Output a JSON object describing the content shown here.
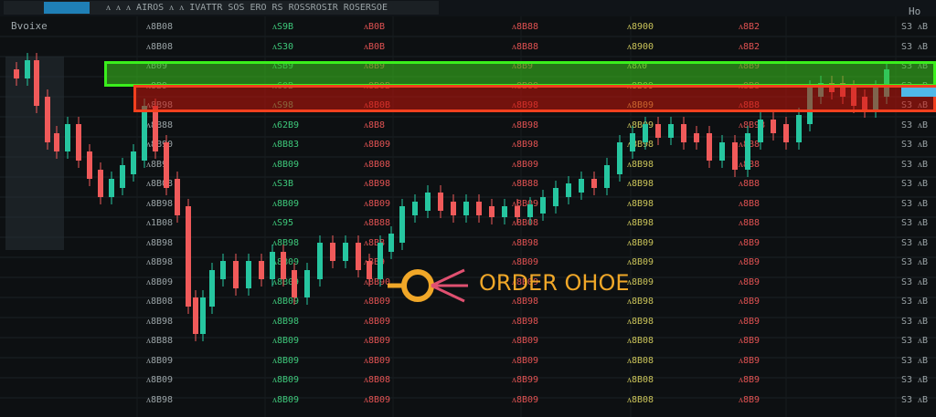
{
  "header": {
    "tab": "",
    "text": "ᴧ  ᴧ  ᴧ  AIROS  ᴧ ᴧ IVATTR  SOS ERO  RS ROSSROSIR  ROSERSOE",
    "left_label": "Bvoixe",
    "right_label": "Ho"
  },
  "callout": {
    "label": "ORDER OHOE",
    "color": "#f0a728"
  },
  "colors": {
    "up": "#26c6a0",
    "down": "#f05a5a",
    "green_zone": "#3aef1c",
    "red_zone": "#f2401e",
    "accent_blue": "#4fb8e8"
  },
  "columns": [
    {
      "color": "#9aa3a6",
      "cells": [
        "ᴧ8B08",
        "ᴧ8B08",
        "ᴧB09",
        "ᴧ8B9",
        "ᴧ8B98",
        "ᴧ8B88",
        "ᴧ8B90",
        "ᴧ8B9",
        "ᴧ8B08",
        "ᴧ8B98",
        "ᴧ1B08",
        "ᴧ8B98",
        "ᴧ8B98",
        "ᴧ8B09",
        "ᴧ8B08",
        "ᴧ8B98",
        "ᴧ8B88",
        "ᴧ8B09",
        "ᴧ8B09",
        "ᴧ8B98"
      ]
    },
    {
      "color": "#3ec77a",
      "cells": [
        "ᴧS9B",
        "ᴧS30",
        "ᴧSB9",
        "ᴧ60B",
        "ᴧS98",
        "ᴧ62B9",
        "ᴧ8B83",
        "ᴧ8B09",
        "ᴧS3B",
        "ᴧ8B09",
        "ᴧS95",
        "ᴧ8B98",
        "ᴧ8B09",
        "ᴧ8B09",
        "ᴧ8B09",
        "ᴧ8B98",
        "ᴧ8B09",
        "ᴧ8B09",
        "ᴧ8B09",
        "ᴧ8B09"
      ]
    },
    {
      "color": "#e05252",
      "cells": [
        "ᴧB0B",
        "ᴧB0B",
        "ᴧ8B9",
        "ᴧ8B0B",
        "ᴧ8B0B",
        "ᴧ8B8",
        "ᴧ8B09",
        "ᴧ8B08",
        "ᴧ8B98",
        "ᴧ8B09",
        "ᴧ8B88",
        "ᴧ8B8",
        "ᴧ8B9",
        "ᴧ8B90",
        "ᴧ8B09",
        "ᴧ8B09",
        "ᴧ8B09",
        "ᴧ8B09",
        "ᴧ8B08",
        "ᴧ8B09"
      ]
    },
    {
      "color": "#e05252",
      "cells": [
        "ᴧ8B88",
        "ᴧ8B88",
        "ᴧ8B9",
        "ᴧ8B88",
        "ᴧ8B98",
        "ᴧ8B98",
        "ᴧ8B98",
        "ᴧ8B09",
        "ᴧ8B88",
        "ᴧ8B09",
        "ᴧ8B08",
        "ᴧ8B98",
        "ᴧ8B09",
        "ᴧ8B09",
        "ᴧ8B98",
        "ᴧ8B98",
        "ᴧ8B09",
        "ᴧ8B09",
        "ᴧ8B99",
        "ᴧ8B09"
      ]
    },
    {
      "color": "#c9c35a",
      "cells": [
        "ᴧ8900",
        "ᴧ8900",
        "ᴧ8ᴧ0",
        "ᴧ8B09",
        "ᴧ8B09",
        "ᴧ8B09",
        "ᴧ8B98",
        "ᴧ8B98",
        "ᴧ8B98",
        "ᴧ8B98",
        "ᴧ8B98",
        "ᴧ8B09",
        "ᴧ8B09",
        "ᴧ8B09",
        "ᴧ8B98",
        "ᴧ8B98",
        "ᴧ8B08",
        "ᴧ8B08",
        "ᴧ8B08",
        "ᴧ8B08"
      ]
    },
    {
      "color": "#e05252",
      "cells": [
        "ᴧ8B2",
        "ᴧ8B2",
        "ᴧ8B9",
        "ᴧ8B8",
        "ᴧ8B8",
        "ᴧ8B98",
        "ᴧ8B8",
        "ᴧ8B8",
        "ᴧ8B8",
        "ᴧ8B8",
        "ᴧ8B8",
        "ᴧ8B9",
        "ᴧ8B9",
        "ᴧ8B9",
        "ᴧ8B9",
        "ᴧ8B9",
        "ᴧ8B9",
        "ᴧ8B9",
        "ᴧ8B9",
        "ᴧ8B9"
      ]
    },
    {
      "color": "#9aa3a6",
      "cells": [
        "S3 ᴧB",
        "S3 ᴧB",
        "S3 ᴧB",
        "S3 ᴧB",
        "S3 ᴧB",
        "S3 ᴧB",
        "S3 ᴧB",
        "S3 ᴧB",
        "S3 ᴧB",
        "S3 ᴧB",
        "S3 ᴧB",
        "S3 ᴧB",
        "S3 ᴧB",
        "S3 ᴧB",
        "S3 ᴧB",
        "S3 ᴧB",
        "S3 ᴧB",
        "S3 ᴧB",
        "S3 ᴧB",
        "S3 ᴧB"
      ]
    }
  ]
}
